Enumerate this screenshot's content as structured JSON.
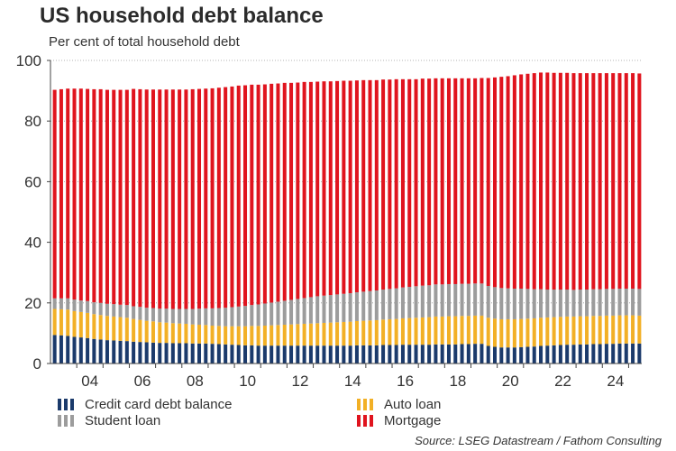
{
  "title": "US household debt balance",
  "subtitle": "Per cent of total household debt",
  "source": "Source: LSEG Datastream / Fathom Consulting",
  "colors": {
    "credit": "#1b3a6b",
    "auto": "#f2b026",
    "student": "#9c9c9c",
    "mortgage": "#e0141e"
  },
  "legend": [
    {
      "key": "credit",
      "label": "Credit card debt balance"
    },
    {
      "key": "auto",
      "label": "Auto loan"
    },
    {
      "key": "student",
      "label": "Student loan"
    },
    {
      "key": "mortgage",
      "label": "Mortgage"
    }
  ],
  "chart_data": {
    "type": "bar",
    "stacked": true,
    "title": "US household debt balance",
    "ylabel": "Per cent of total household debt",
    "ylim": [
      0,
      100
    ],
    "yticks": [
      0,
      20,
      40,
      60,
      80,
      100
    ],
    "xticks": [
      "04",
      "06",
      "08",
      "10",
      "12",
      "14",
      "16",
      "18",
      "20",
      "22",
      "24"
    ],
    "x_start": "2003 Q1",
    "x_end": "2025 Q2",
    "frequency": "quarterly",
    "series": [
      {
        "name": "Credit card debt balance",
        "key": "credit",
        "values": [
          9.4,
          9.3,
          9.1,
          8.8,
          8.6,
          8.4,
          8.1,
          7.9,
          7.7,
          7.6,
          7.5,
          7.4,
          7.2,
          7.1,
          7.0,
          6.9,
          6.8,
          6.8,
          6.7,
          6.7,
          6.7,
          6.6,
          6.6,
          6.6,
          6.5,
          6.4,
          6.3,
          6.2,
          6.1,
          6.0,
          6.0,
          5.9,
          5.9,
          5.9,
          5.9,
          5.9,
          5.9,
          5.9,
          5.9,
          5.9,
          5.9,
          5.9,
          5.9,
          5.9,
          5.9,
          5.9,
          6.0,
          6.0,
          6.0,
          6.0,
          6.1,
          6.1,
          6.1,
          6.2,
          6.2,
          6.2,
          6.2,
          6.2,
          6.3,
          6.3,
          6.3,
          6.3,
          6.4,
          6.4,
          6.5,
          6.5,
          5.8,
          5.5,
          5.3,
          5.3,
          5.3,
          5.4,
          5.5,
          5.6,
          5.8,
          5.9,
          6.0,
          6.1,
          6.2,
          6.2,
          6.3,
          6.3,
          6.4,
          6.4,
          6.5,
          6.5,
          6.6,
          6.6,
          6.6,
          6.6
        ]
      },
      {
        "name": "Auto loan",
        "key": "auto",
        "values": [
          8.6,
          8.6,
          8.7,
          8.5,
          8.4,
          8.3,
          8.2,
          8.1,
          8.0,
          7.9,
          7.8,
          7.7,
          7.5,
          7.3,
          7.1,
          7.0,
          6.8,
          6.7,
          6.6,
          6.5,
          6.4,
          6.3,
          6.2,
          6.1,
          6.0,
          6.0,
          6.0,
          6.1,
          6.2,
          6.3,
          6.4,
          6.5,
          6.6,
          6.7,
          6.8,
          6.9,
          7.0,
          7.1,
          7.2,
          7.3,
          7.4,
          7.5,
          7.6,
          7.7,
          7.8,
          7.9,
          8.0,
          8.1,
          8.2,
          8.3,
          8.4,
          8.5,
          8.6,
          8.7,
          8.8,
          8.9,
          9.0,
          9.1,
          9.2,
          9.2,
          9.3,
          9.3,
          9.3,
          9.3,
          9.3,
          9.3,
          9.3,
          9.3,
          9.3,
          9.3,
          9.3,
          9.3,
          9.3,
          9.3,
          9.3,
          9.3,
          9.3,
          9.3,
          9.3,
          9.3,
          9.3,
          9.3,
          9.3,
          9.3,
          9.3,
          9.3,
          9.3,
          9.3,
          9.3,
          9.2
        ]
      },
      {
        "name": "Student loan",
        "key": "student",
        "values": [
          3.5,
          3.6,
          3.7,
          3.8,
          3.8,
          3.9,
          3.9,
          4.0,
          4.0,
          4.1,
          4.1,
          4.2,
          4.2,
          4.3,
          4.3,
          4.4,
          4.5,
          4.6,
          4.7,
          4.8,
          4.9,
          5.1,
          5.3,
          5.5,
          5.7,
          5.9,
          6.1,
          6.3,
          6.5,
          6.7,
          6.9,
          7.1,
          7.3,
          7.5,
          7.7,
          7.9,
          8.1,
          8.3,
          8.5,
          8.7,
          8.9,
          9.0,
          9.1,
          9.2,
          9.3,
          9.4,
          9.5,
          9.6,
          9.7,
          9.8,
          9.9,
          10.0,
          10.1,
          10.2,
          10.3,
          10.4,
          10.5,
          10.5,
          10.6,
          10.6,
          10.6,
          10.6,
          10.6,
          10.6,
          10.6,
          10.6,
          10.5,
          10.4,
          10.3,
          10.2,
          10.1,
          10.0,
          9.8,
          9.6,
          9.4,
          9.2,
          9.1,
          9.0,
          8.9,
          8.8,
          8.8,
          8.8,
          8.8,
          8.8,
          8.8,
          8.8,
          8.8,
          8.8,
          8.8,
          8.8
        ]
      },
      {
        "name": "Mortgage",
        "key": "mortgage",
        "values": [
          68.8,
          69.0,
          69.2,
          69.6,
          69.9,
          70.0,
          70.3,
          70.5,
          70.6,
          70.7,
          70.9,
          71.0,
          71.7,
          71.8,
          72.0,
          72.1,
          72.3,
          72.3,
          72.4,
          72.4,
          72.4,
          72.5,
          72.5,
          72.5,
          72.6,
          72.7,
          72.8,
          72.8,
          72.9,
          72.8,
          72.7,
          72.5,
          72.3,
          72.2,
          72.0,
          71.9,
          71.6,
          71.4,
          71.3,
          71.0,
          70.8,
          70.7,
          70.5,
          70.4,
          70.3,
          70.1,
          69.9,
          69.8,
          69.6,
          69.4,
          69.3,
          69.1,
          69.0,
          68.7,
          68.5,
          68.3,
          68.3,
          68.2,
          68.0,
          68.0,
          67.9,
          67.9,
          67.8,
          67.8,
          67.7,
          67.8,
          68.6,
          69.2,
          69.7,
          70.0,
          70.4,
          70.7,
          71.0,
          71.3,
          71.5,
          71.6,
          71.5,
          71.5,
          71.5,
          71.5,
          71.4,
          71.4,
          71.3,
          71.3,
          71.2,
          71.2,
          71.1,
          71.1,
          71.1,
          71.1
        ]
      }
    ]
  }
}
